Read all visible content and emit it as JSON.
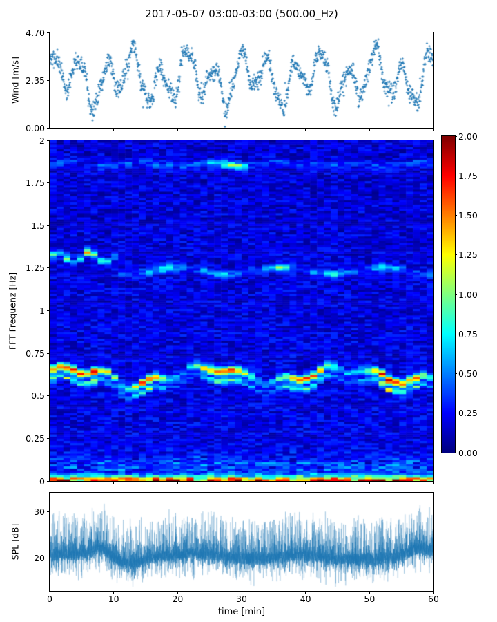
{
  "figure": {
    "title": "2017-05-07 03:00-03:00 (500.00_Hz)",
    "background": "#ffffff",
    "accent_blue": "#1f77b4",
    "spine_color": "#000000"
  },
  "x_axis": {
    "label": "time [min]",
    "ticks": [
      "0",
      "10",
      "20",
      "30",
      "40",
      "50",
      "60"
    ],
    "xlim": [
      0,
      60
    ]
  },
  "chart_data": [
    {
      "id": "wind",
      "type": "scatter",
      "ylabel": "Wind [m/s]",
      "yticks": [
        "4.70",
        "2.35",
        "0.00"
      ],
      "ylim": [
        0.0,
        4.7
      ],
      "xlim": [
        0,
        60
      ],
      "marker": "plus",
      "color": "#1f77b4",
      "summary": "~1400 wind-speed samples over 60 min, quasi-periodic gusts oscillating between ~0.5 and ~4.2 m/s with ~4 min period, dense upper band near 3.2-3.6 m/s and repeated dips to ~1 m/s",
      "synth": {
        "seed": 11,
        "n_points": 1400,
        "mean": 2.45,
        "components": [
          {
            "amp": 0.95,
            "period": 4.2,
            "phase": 0.8
          },
          {
            "amp": 0.55,
            "period": 9.7,
            "phase": 0.0
          },
          {
            "amp": 0.25,
            "period": 1.9,
            "phase": 2.0
          }
        ],
        "noise": 0.5,
        "outlier_rate": 0.04,
        "clip": [
          0.05,
          4.65
        ]
      }
    },
    {
      "id": "spectrogram",
      "type": "heatmap",
      "ylabel": "FFT Frequenz [Hz]",
      "yticks": [
        "2",
        "1.75",
        "1.5",
        "1.25",
        "1",
        "0.75",
        "0.5",
        "0.25",
        "0"
      ],
      "ylim": [
        0,
        2
      ],
      "xlim": [
        0,
        60
      ],
      "colormap": "jet",
      "clim": [
        0.0,
        2.0
      ],
      "grid": {
        "nt": 56,
        "nf": 160
      },
      "background_range": [
        0.06,
        0.36
      ],
      "summary": "Mostly dark/medium blue background (~0.1-0.35). Strong wandering band near 0.6-0.68 Hz peaking orange/red (~2.0) at t=5-10 min and brightening again near t=55-60; moderate band near 1.25 Hz (brighter ~1.3-1.35 Hz at t=2-10); weak band near 1.85 Hz brightest at t=24-32; intense yellow/orange strip at the bottom edge near 0 Hz.",
      "bands": [
        {
          "name": "main-band",
          "center_hz": 0.625,
          "width_hz": 0.022,
          "intensity_base": 0.85,
          "peak1_time": 7.0,
          "peak1_amp": 1.15,
          "peak2_time": 57.0,
          "peak2_amp": 0.4,
          "dip_time": 12.0,
          "secondary_offset_hz": -0.055
        },
        {
          "name": "band-1-25",
          "center_early_hz": 1.315,
          "center_late_hz": 1.235,
          "split_time": 10.5,
          "width_hz": 0.02,
          "intensity_base": 0.4,
          "peak_time": 6.0,
          "peak_amp": 0.5
        },
        {
          "name": "band-1-85",
          "center_hz": 1.86,
          "width_hz": 0.022,
          "intensity_base": 0.22,
          "peak_time": 28.0,
          "peak_amp": 0.55
        },
        {
          "name": "dc-band",
          "center_hz": 0.0,
          "width_hz": 0.03,
          "intensity_base": 0.8,
          "intensity_rand": 1.2
        }
      ]
    },
    {
      "id": "spl",
      "type": "line",
      "ylabel": "SPL [dB]",
      "yticks": [
        "30",
        "20"
      ],
      "ylim": [
        13,
        34
      ],
      "xlim": [
        0,
        60
      ],
      "color": "#1f77b4",
      "summary": "Dense noisy sound-pressure-level trace centered ~20-22 dB, floor ~16 dB, frequent spikes to 26-30 dB, tallest peaks ~32 dB near t=7-9 min and rising again near t=55-60 min",
      "synth": {
        "seed": 77,
        "n_points": 3000,
        "base": 20.2,
        "events": [
          {
            "time": 7.7,
            "amp": 2.0,
            "width": 1.7
          },
          {
            "time": 58.0,
            "amp": 1.5,
            "width": 2.5
          },
          {
            "time": 25.0,
            "amp": 0.4,
            "width": 4.0
          },
          {
            "time": 13.0,
            "amp": -1.0,
            "width": 1.8
          },
          {
            "time": 44.0,
            "amp": -0.7,
            "width": 3.0
          }
        ]
      }
    }
  ],
  "colorbar": {
    "ticks": [
      "2.00",
      "1.75",
      "1.50",
      "1.25",
      "1.00",
      "0.75",
      "0.50",
      "0.25",
      "0.00"
    ],
    "colormap": "jet",
    "range": [
      0,
      2
    ]
  }
}
